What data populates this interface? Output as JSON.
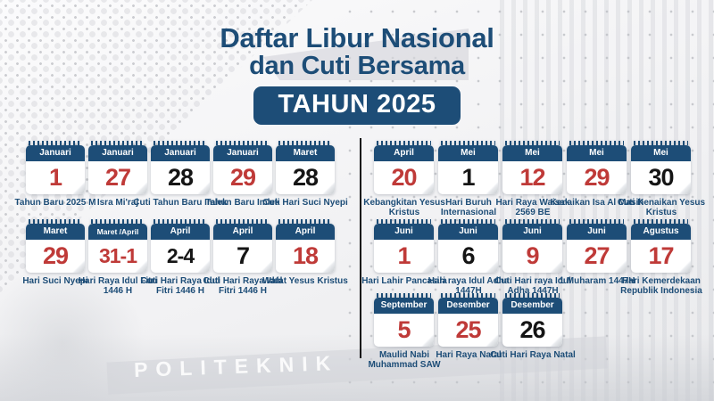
{
  "title": {
    "line1": "Daftar Libur Nasional",
    "line2": "dan Cuti Bersama",
    "badge": "TAHUN 2025"
  },
  "colors": {
    "navy": "#1d4d77",
    "red": "#bf3a38",
    "black": "#151515"
  },
  "background": {
    "watermark": "POLITEKNIK"
  },
  "left_cards": [
    {
      "month": "Januari",
      "date": "1",
      "color": "red",
      "label": "Tahun Baru 2025 M"
    },
    {
      "month": "Januari",
      "date": "27",
      "color": "red",
      "label": "Isra Mi'raj"
    },
    {
      "month": "Januari",
      "date": "28",
      "color": "black",
      "label": "Cuti Tahun Baru Imlek"
    },
    {
      "month": "Januari",
      "date": "29",
      "color": "red",
      "label": "Tahun Baru Imlek"
    },
    {
      "month": "Maret",
      "date": "28",
      "color": "black",
      "label": "Cuti Hari Suci Nyepi"
    },
    {
      "month": "Maret",
      "date": "29",
      "color": "red",
      "label": "Hari Suci Nyepi"
    },
    {
      "month": "Maret /April",
      "date": "31-1",
      "color": "red",
      "label": "Hari Raya Idul Fitri 1446 H"
    },
    {
      "month": "April",
      "date": "2-4",
      "color": "black",
      "label": "Cuti Hari Raya Idul Fitri 1446 H"
    },
    {
      "month": "April",
      "date": "7",
      "color": "black",
      "label": "Cuti Hari Raya Idul Fitri 1446 H"
    },
    {
      "month": "April",
      "date": "18",
      "color": "red",
      "label": "Wafat Yesus Kristus"
    }
  ],
  "right_cards": [
    {
      "month": "April",
      "date": "20",
      "color": "red",
      "label": "Kebangkitan Yesus Kristus"
    },
    {
      "month": "Mei",
      "date": "1",
      "color": "black",
      "label": "Hari Buruh Internasional"
    },
    {
      "month": "Mei",
      "date": "12",
      "color": "red",
      "label": "Hari Raya Waisak 2569 BE"
    },
    {
      "month": "Mei",
      "date": "29",
      "color": "red",
      "label": "Kenaikan Isa Al Masih"
    },
    {
      "month": "Mei",
      "date": "30",
      "color": "black",
      "label": "Cuti Kenaikan Yesus Kristus"
    },
    {
      "month": "Juni",
      "date": "1",
      "color": "red",
      "label": "Hari Lahir Pancasila"
    },
    {
      "month": "Juni",
      "date": "6",
      "color": "black",
      "label": "Hari raya Idul Adha 1447H"
    },
    {
      "month": "Juni",
      "date": "9",
      "color": "red",
      "label": "Cuti Hari raya Idul Adha 1447H"
    },
    {
      "month": "Juni",
      "date": "27",
      "color": "red",
      "label": "1 Muharam 1447H"
    },
    {
      "month": "Agustus",
      "date": "17",
      "color": "red",
      "label": "Hari Kemerdekaan Republik Indonesia"
    }
  ],
  "bottom_cards": [
    {
      "month": "September",
      "date": "5",
      "color": "red",
      "label": "Maulid Nabi Muhammad SAW"
    },
    {
      "month": "Desember",
      "date": "25",
      "color": "red",
      "label": "Hari Raya Natal"
    },
    {
      "month": "Desember",
      "date": "26",
      "color": "black",
      "label": "Cuti Hari Raya Natal"
    }
  ]
}
